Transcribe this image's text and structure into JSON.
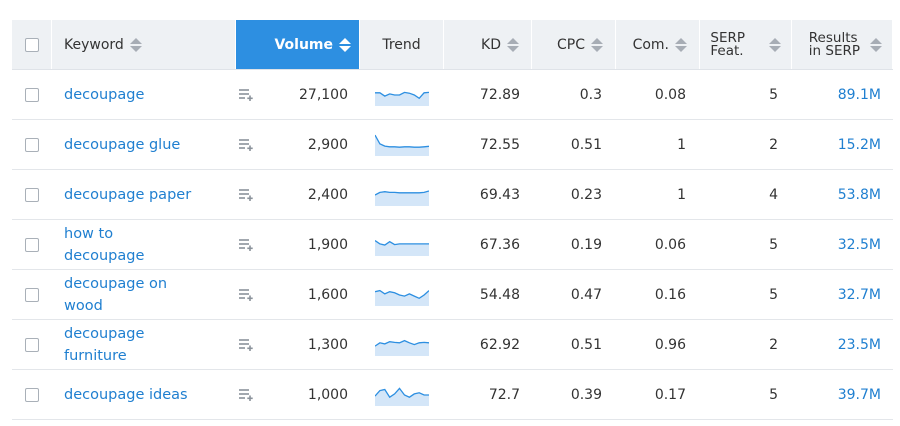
{
  "columns": {
    "keyword": "Keyword",
    "volume": "Volume",
    "trend": "Trend",
    "kd": "KD",
    "cpc": "CPC",
    "com": "Com.",
    "serp_line1": "SERP",
    "serp_line2": "Feat.",
    "results_line1": "Results",
    "results_line2": "in SERP"
  },
  "active_sort": "volume",
  "colors": {
    "accent": "#2d8fe1",
    "link": "#1f7fd0",
    "trend_fill": "#d4e6f8",
    "trend_line": "#2d8fe1"
  },
  "rows": [
    {
      "keyword": "decoupage",
      "volume": "27,100",
      "kd": "72.89",
      "cpc": "0.3",
      "com": "0.08",
      "serp": "5",
      "results": "89.1M",
      "trend": [
        0.6,
        0.6,
        0.45,
        0.55,
        0.5,
        0.5,
        0.62,
        0.58,
        0.5,
        0.35,
        0.6,
        0.62
      ]
    },
    {
      "keyword": "decoupage glue",
      "volume": "2,900",
      "kd": "72.55",
      "cpc": "0.51",
      "com": "1",
      "serp": "2",
      "results": "15.2M",
      "trend": [
        0.95,
        0.55,
        0.45,
        0.42,
        0.42,
        0.4,
        0.42,
        0.42,
        0.4,
        0.4,
        0.42,
        0.44
      ]
    },
    {
      "keyword": "decoupage paper",
      "volume": "2,400",
      "kd": "69.43",
      "cpc": "0.23",
      "com": "1",
      "serp": "4",
      "results": "53.8M",
      "trend": [
        0.5,
        0.62,
        0.65,
        0.62,
        0.62,
        0.6,
        0.6,
        0.6,
        0.6,
        0.6,
        0.62,
        0.68
      ]
    },
    {
      "keyword": "how to decoupage",
      "volume": "1,900",
      "kd": "67.36",
      "cpc": "0.19",
      "com": "0.06",
      "serp": "5",
      "results": "32.5M",
      "trend": [
        0.7,
        0.55,
        0.5,
        0.65,
        0.52,
        0.55,
        0.55,
        0.55,
        0.55,
        0.55,
        0.55,
        0.55
      ]
    },
    {
      "keyword": "decoupage on wood",
      "volume": "1,600",
      "kd": "54.48",
      "cpc": "0.47",
      "com": "0.16",
      "serp": "5",
      "results": "32.7M",
      "trend": [
        0.65,
        0.7,
        0.55,
        0.65,
        0.6,
        0.5,
        0.45,
        0.55,
        0.45,
        0.35,
        0.5,
        0.7
      ]
    },
    {
      "keyword": "decoupage furniture",
      "volume": "1,300",
      "kd": "62.92",
      "cpc": "0.51",
      "com": "0.96",
      "serp": "2",
      "results": "23.5M",
      "trend": [
        0.45,
        0.6,
        0.55,
        0.65,
        0.62,
        0.6,
        0.7,
        0.6,
        0.52,
        0.6,
        0.62,
        0.6
      ]
    },
    {
      "keyword": "decoupage ideas",
      "volume": "1,000",
      "kd": "72.7",
      "cpc": "0.39",
      "com": "0.17",
      "serp": "5",
      "results": "39.7M",
      "trend": [
        0.45,
        0.7,
        0.75,
        0.4,
        0.55,
        0.8,
        0.5,
        0.4,
        0.55,
        0.6,
        0.5,
        0.5
      ]
    }
  ]
}
